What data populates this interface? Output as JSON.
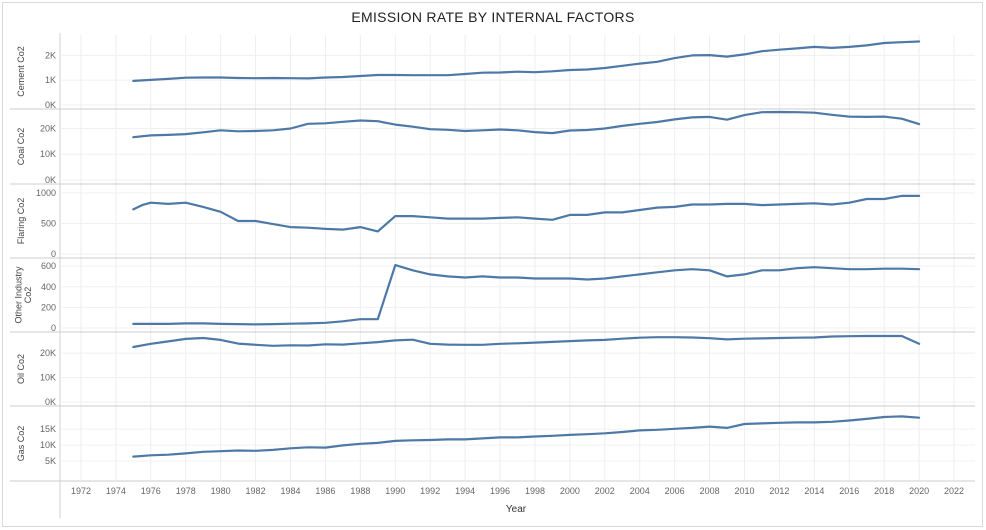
{
  "title": "EMISSION RATE BY INTERNAL FACTORS",
  "line_color": "#4e79a7",
  "chart_data": [
    {
      "type": "line",
      "ylabel": "Cement Co2",
      "xlabel": "",
      "ylim": [
        0,
        2700
      ],
      "yticks": [
        {
          "v": 0,
          "label": "0K"
        },
        {
          "v": 1000,
          "label": "1K"
        },
        {
          "v": 2000,
          "label": "2K"
        }
      ],
      "x": [
        1975,
        1976,
        1977,
        1978,
        1979,
        1980,
        1981,
        1982,
        1983,
        1984,
        1985,
        1986,
        1987,
        1988,
        1989,
        1990,
        1991,
        1992,
        1993,
        1994,
        1995,
        1996,
        1997,
        1998,
        1999,
        2000,
        2001,
        2002,
        2003,
        2004,
        2005,
        2006,
        2007,
        2008,
        2009,
        2010,
        2011,
        2012,
        2013,
        2014,
        2015,
        2016,
        2017,
        2018,
        2019,
        2020
      ],
      "values": [
        970,
        1010,
        1050,
        1100,
        1110,
        1110,
        1090,
        1080,
        1090,
        1080,
        1070,
        1110,
        1130,
        1170,
        1210,
        1210,
        1200,
        1200,
        1200,
        1250,
        1300,
        1310,
        1340,
        1320,
        1360,
        1410,
        1430,
        1490,
        1580,
        1670,
        1740,
        1890,
        2000,
        2010,
        1950,
        2040,
        2170,
        2230,
        2280,
        2340,
        2300,
        2340,
        2400,
        2500,
        2530,
        2560
      ]
    },
    {
      "type": "line",
      "ylabel": "Coal Co2",
      "xlabel": "",
      "ylim": [
        0,
        26000
      ],
      "yticks": [
        {
          "v": 0,
          "label": "0K"
        },
        {
          "v": 10000,
          "label": "10K"
        },
        {
          "v": 20000,
          "label": "20K"
        }
      ],
      "x": [
        1975,
        1976,
        1977,
        1978,
        1979,
        1980,
        1981,
        1982,
        1983,
        1984,
        1985,
        1986,
        1987,
        1988,
        1989,
        1990,
        1991,
        1992,
        1993,
        1994,
        1995,
        1996,
        1997,
        1998,
        1999,
        2000,
        2001,
        2002,
        2003,
        2004,
        2005,
        2006,
        2007,
        2008,
        2009,
        2010,
        2011,
        2012,
        2013,
        2014,
        2015,
        2016,
        2017,
        2018,
        2019,
        2020
      ],
      "values": [
        16600,
        17300,
        17500,
        17800,
        18500,
        19300,
        18900,
        19000,
        19300,
        20000,
        21800,
        22000,
        22600,
        23100,
        22800,
        21500,
        20700,
        19700,
        19500,
        19000,
        19300,
        19600,
        19300,
        18600,
        18200,
        19200,
        19400,
        20000,
        21000,
        21800,
        22500,
        23500,
        24300,
        24500,
        23400,
        25200,
        26300,
        26400,
        26300,
        26100,
        25300,
        24600,
        24500,
        24600,
        23800,
        21700
      ]
    },
    {
      "type": "line",
      "ylabel": "Flaring Co2",
      "xlabel": "",
      "ylim": [
        0,
        1080
      ],
      "yticks": [
        {
          "v": 0,
          "label": "0"
        },
        {
          "v": 500,
          "label": "500"
        },
        {
          "v": 1000,
          "label": "1000"
        }
      ],
      "x": [
        1975,
        1975.5,
        1976,
        1977,
        1978,
        1979,
        1980,
        1981,
        1982,
        1983,
        1984,
        1985,
        1986,
        1987,
        1988,
        1989,
        1990,
        1991,
        1992,
        1993,
        1994,
        1995,
        1996,
        1997,
        1998,
        1999,
        2000,
        2001,
        2002,
        2003,
        2004,
        2005,
        2006,
        2007,
        2008,
        2009,
        2010,
        2011,
        2012,
        2013,
        2014,
        2015,
        2016,
        2017,
        2018,
        2019,
        2020
      ],
      "values": [
        730,
        800,
        840,
        820,
        840,
        770,
        690,
        540,
        540,
        490,
        440,
        430,
        410,
        400,
        440,
        370,
        620,
        620,
        600,
        580,
        580,
        580,
        590,
        600,
        580,
        560,
        640,
        640,
        680,
        680,
        720,
        760,
        770,
        810,
        810,
        820,
        820,
        800,
        810,
        820,
        830,
        810,
        840,
        900,
        900,
        950,
        950
      ]
    },
    {
      "type": "line",
      "ylabel": "Other Industry Co2",
      "xlabel": "",
      "ylim": [
        0,
        640
      ],
      "yticks": [
        {
          "v": 0,
          "label": "0"
        },
        {
          "v": 200,
          "label": "200"
        },
        {
          "v": 400,
          "label": "400"
        },
        {
          "v": 600,
          "label": "600"
        }
      ],
      "x": [
        1975,
        1976,
        1977,
        1978,
        1979,
        1980,
        1981,
        1982,
        1983,
        1984,
        1985,
        1986,
        1987,
        1988,
        1989,
        1990,
        1991,
        1992,
        1993,
        1994,
        1995,
        1996,
        1997,
        1998,
        1999,
        2000,
        2001,
        2002,
        2003,
        2004,
        2005,
        2006,
        2007,
        2008,
        2009,
        2010,
        2011,
        2012,
        2013,
        2014,
        2015,
        2016,
        2017,
        2018,
        2019,
        2020
      ],
      "values": [
        40,
        40,
        40,
        45,
        45,
        40,
        38,
        35,
        38,
        42,
        45,
        50,
        65,
        85,
        85,
        610,
        560,
        520,
        500,
        490,
        500,
        490,
        490,
        480,
        480,
        480,
        470,
        480,
        500,
        520,
        540,
        560,
        570,
        560,
        500,
        520,
        560,
        560,
        580,
        590,
        580,
        570,
        570,
        575,
        575,
        570
      ]
    },
    {
      "type": "line",
      "ylabel": "Oil Co2",
      "xlabel": "",
      "ylim": [
        0,
        27000
      ],
      "yticks": [
        {
          "v": 0,
          "label": "0K"
        },
        {
          "v": 10000,
          "label": "10K"
        },
        {
          "v": 20000,
          "label": "20K"
        }
      ],
      "x": [
        1975,
        1976,
        1977,
        1978,
        1979,
        1980,
        1981,
        1982,
        1983,
        1984,
        1985,
        1986,
        1987,
        1988,
        1989,
        1990,
        1991,
        1992,
        1993,
        1994,
        1995,
        1996,
        1997,
        1998,
        1999,
        2000,
        2001,
        2002,
        2003,
        2004,
        2005,
        2006,
        2007,
        2008,
        2009,
        2010,
        2011,
        2012,
        2013,
        2014,
        2015,
        2016,
        2017,
        2018,
        2019,
        2020
      ],
      "values": [
        22500,
        23800,
        24800,
        25800,
        26200,
        25400,
        23900,
        23400,
        23000,
        23200,
        23100,
        23600,
        23500,
        24000,
        24500,
        25200,
        25500,
        23800,
        23500,
        23400,
        23400,
        23800,
        24000,
        24300,
        24600,
        24900,
        25200,
        25400,
        25900,
        26300,
        26500,
        26500,
        26400,
        26100,
        25600,
        25900,
        26000,
        26200,
        26300,
        26400,
        26800,
        26900,
        27000,
        27000,
        27000,
        23800
      ]
    },
    {
      "type": "line",
      "ylabel": "Gas Co2",
      "xlabel": "Year",
      "ylim": [
        0,
        21000
      ],
      "yticks": [
        {
          "v": 5000,
          "label": "5K"
        },
        {
          "v": 10000,
          "label": "10K"
        },
        {
          "v": 15000,
          "label": "15K"
        }
      ],
      "x": [
        1975,
        1976,
        1977,
        1978,
        1979,
        1980,
        1981,
        1982,
        1983,
        1984,
        1985,
        1986,
        1987,
        1988,
        1989,
        1990,
        1991,
        1992,
        1993,
        1994,
        1995,
        1996,
        1997,
        1998,
        1999,
        2000,
        2001,
        2002,
        2003,
        2004,
        2005,
        2006,
        2007,
        2008,
        2009,
        2010,
        2011,
        2012,
        2013,
        2014,
        2015,
        2016,
        2017,
        2018,
        2019,
        2020
      ],
      "values": [
        6400,
        6800,
        7000,
        7400,
        7900,
        8100,
        8300,
        8200,
        8500,
        9000,
        9300,
        9200,
        9900,
        10400,
        10700,
        11300,
        11500,
        11600,
        11800,
        11800,
        12100,
        12400,
        12400,
        12700,
        12900,
        13200,
        13400,
        13700,
        14100,
        14600,
        14800,
        15100,
        15400,
        15800,
        15400,
        16600,
        16800,
        17000,
        17100,
        17100,
        17300,
        17700,
        18200,
        18800,
        19000,
        18600
      ]
    }
  ],
  "x_axis": {
    "label": "Year",
    "ticks": [
      "1972",
      "1974",
      "1976",
      "1978",
      "1980",
      "1982",
      "1984",
      "1986",
      "1988",
      "1990",
      "1992",
      "1994",
      "1996",
      "1998",
      "2000",
      "2002",
      "2004",
      "2006",
      "2008",
      "2010",
      "2012",
      "2014",
      "2016",
      "2018",
      "2020",
      "2022"
    ]
  }
}
